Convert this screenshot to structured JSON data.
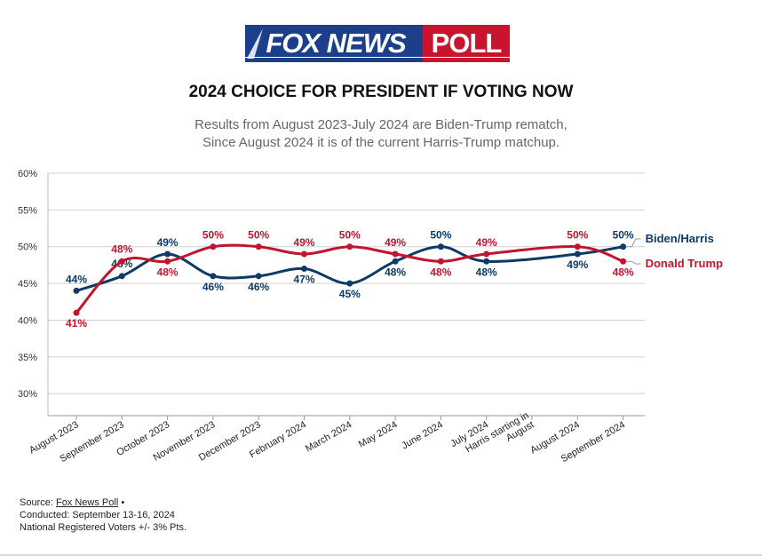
{
  "header": {
    "logo_word1": "FOX NEWS",
    "logo_word2": "POLL",
    "title": "2024 CHOICE FOR PRESIDENT IF VOTING NOW",
    "subtitle_line1": "Results from August 2023-July 2024 are Biden-Trump rematch,",
    "subtitle_line2": "Since August 2024 it is of the current Harris-Trump matchup."
  },
  "colors": {
    "biden_harris": "#0d3a66",
    "trump": "#c0152f",
    "logo_blue": "#1c3f8c",
    "logo_red": "#c8142d",
    "grid": "#d0d0d0",
    "label_gray": "#555555"
  },
  "chart_data": {
    "type": "line",
    "categories": [
      "August 2023",
      "September 2023",
      "October 2023",
      "November 2023",
      "December 2023",
      "February 2024",
      "March 2024",
      "May 2024",
      "June 2024",
      "July 2024",
      "Harris starting in August",
      "August 2024",
      "September 2024"
    ],
    "category_label_lines": [
      [
        "August 2023"
      ],
      [
        "September 2023"
      ],
      [
        "October 2023"
      ],
      [
        "November 2023"
      ],
      [
        "December 2023"
      ],
      [
        "February 2024"
      ],
      [
        "March 2024"
      ],
      [
        "May 2024"
      ],
      [
        "June 2024"
      ],
      [
        "July 2024"
      ],
      [
        "Harris starting in",
        "August"
      ],
      [
        "August 2024"
      ],
      [
        "September 2024"
      ]
    ],
    "series": [
      {
        "name": "Biden/Harris",
        "color": "#0d3a66",
        "values": [
          44,
          46,
          49,
          46,
          46,
          47,
          45,
          48,
          50,
          48,
          null,
          49,
          50
        ],
        "labels": [
          "44%",
          "46%",
          "49%",
          "46%",
          "46%",
          "47%",
          "45%",
          "48%",
          "50%",
          "48%",
          null,
          "49%",
          "50%"
        ]
      },
      {
        "name": "Donald Trump",
        "color": "#c0152f",
        "values": [
          41,
          48,
          48,
          50,
          50,
          49,
          50,
          49,
          48,
          49,
          null,
          50,
          48
        ],
        "labels": [
          "41%",
          "48%",
          "48%",
          "50%",
          "50%",
          "49%",
          "50%",
          "49%",
          "48%",
          "49%",
          null,
          "50%",
          "48%"
        ]
      }
    ],
    "yticks": [
      "60%",
      "55%",
      "50%",
      "45%",
      "40%",
      "35%",
      "30%"
    ],
    "ytick_values": [
      60,
      55,
      50,
      45,
      40,
      35,
      30
    ],
    "ylim": [
      27,
      60
    ],
    "grid": true,
    "legend": "right, labels at line ends"
  },
  "footer": {
    "source_prefix": "Source: ",
    "source_link": "Fox News Poll",
    "source_suffix": " •",
    "conducted": "Conducted: September 13-16, 2024",
    "universe": "National Registered Voters +/- 3% Pts."
  }
}
